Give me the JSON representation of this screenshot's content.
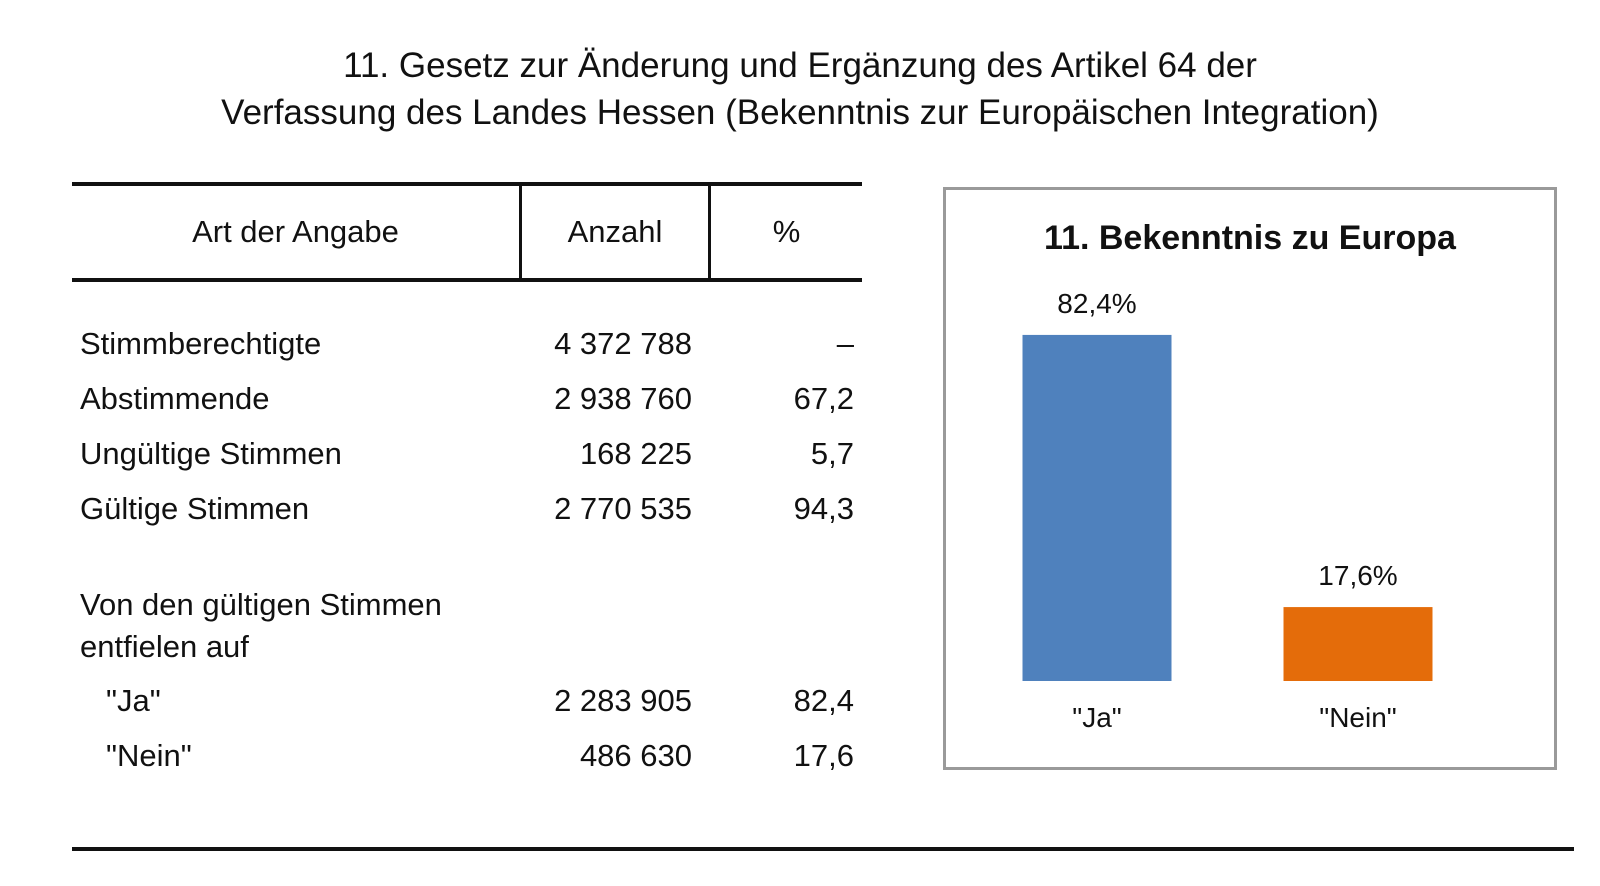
{
  "title": {
    "line1": "11. Gesetz zur Änderung und Ergänzung des Artikel 64 der",
    "line2": "Verfassung des Landes Hessen (Bekenntnis zur Europäischen Integration)"
  },
  "table": {
    "headers": {
      "label": "Art der Angabe",
      "count": "Anzahl",
      "percent": "%"
    },
    "rows": [
      {
        "label": "Stimmberechtigte",
        "count": "4 372 788",
        "percent": "–"
      },
      {
        "label": "Abstimmende",
        "count": "2 938 760",
        "percent": "67,2"
      },
      {
        "label": "Ungültige Stimmen",
        "count": "168 225",
        "percent": "5,7"
      },
      {
        "label": "Gültige Stimmen",
        "count": "2 770 535",
        "percent": "94,3"
      }
    ],
    "section_label_line1": "Von den gültigen Stimmen",
    "section_label_line2": "entfielen auf",
    "sub_rows": [
      {
        "label": "\"Ja\"",
        "count": "2 283 905",
        "percent": "82,4"
      },
      {
        "label": "\"Nein\"",
        "count": "486 630",
        "percent": "17,6"
      }
    ]
  },
  "chart_data": {
    "type": "bar",
    "title": "11. Bekenntnis zu Europa",
    "categories": [
      "\"Ja\"",
      "\"Nein\""
    ],
    "values": [
      82.4,
      17.6
    ],
    "value_labels": [
      "82,4%",
      "17,6%"
    ],
    "colors": [
      "#4f81bd",
      "#e46c0a"
    ],
    "ylim": [
      0,
      100
    ],
    "grid": false,
    "legend": "none"
  }
}
